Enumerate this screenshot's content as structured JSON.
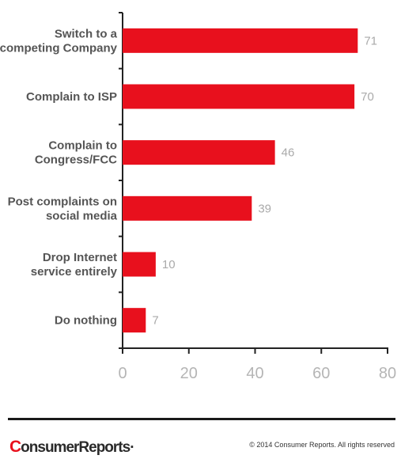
{
  "chart_data": {
    "type": "bar",
    "orientation": "horizontal",
    "categories": [
      [
        "Switch to a",
        "competing Company"
      ],
      [
        "Complain to ISP"
      ],
      [
        "Complain to",
        "Congress/FCC"
      ],
      [
        "Post complaints on",
        "social media"
      ],
      [
        "Drop Internet",
        "service entirely"
      ],
      [
        "Do nothing"
      ]
    ],
    "values": [
      71,
      70,
      46,
      39,
      10,
      7
    ],
    "xlim": [
      0,
      80
    ],
    "xticks": [
      0,
      20,
      40,
      60,
      80
    ],
    "bar_color": "#e8101d",
    "grid": false,
    "title": "",
    "xlabel": "",
    "ylabel": ""
  },
  "footer": {
    "logo_first": "C",
    "logo_rest": "onsumerReports",
    "logo_mark": "·",
    "copyright": "© 2014 Consumer Reports. All rights reserved"
  }
}
